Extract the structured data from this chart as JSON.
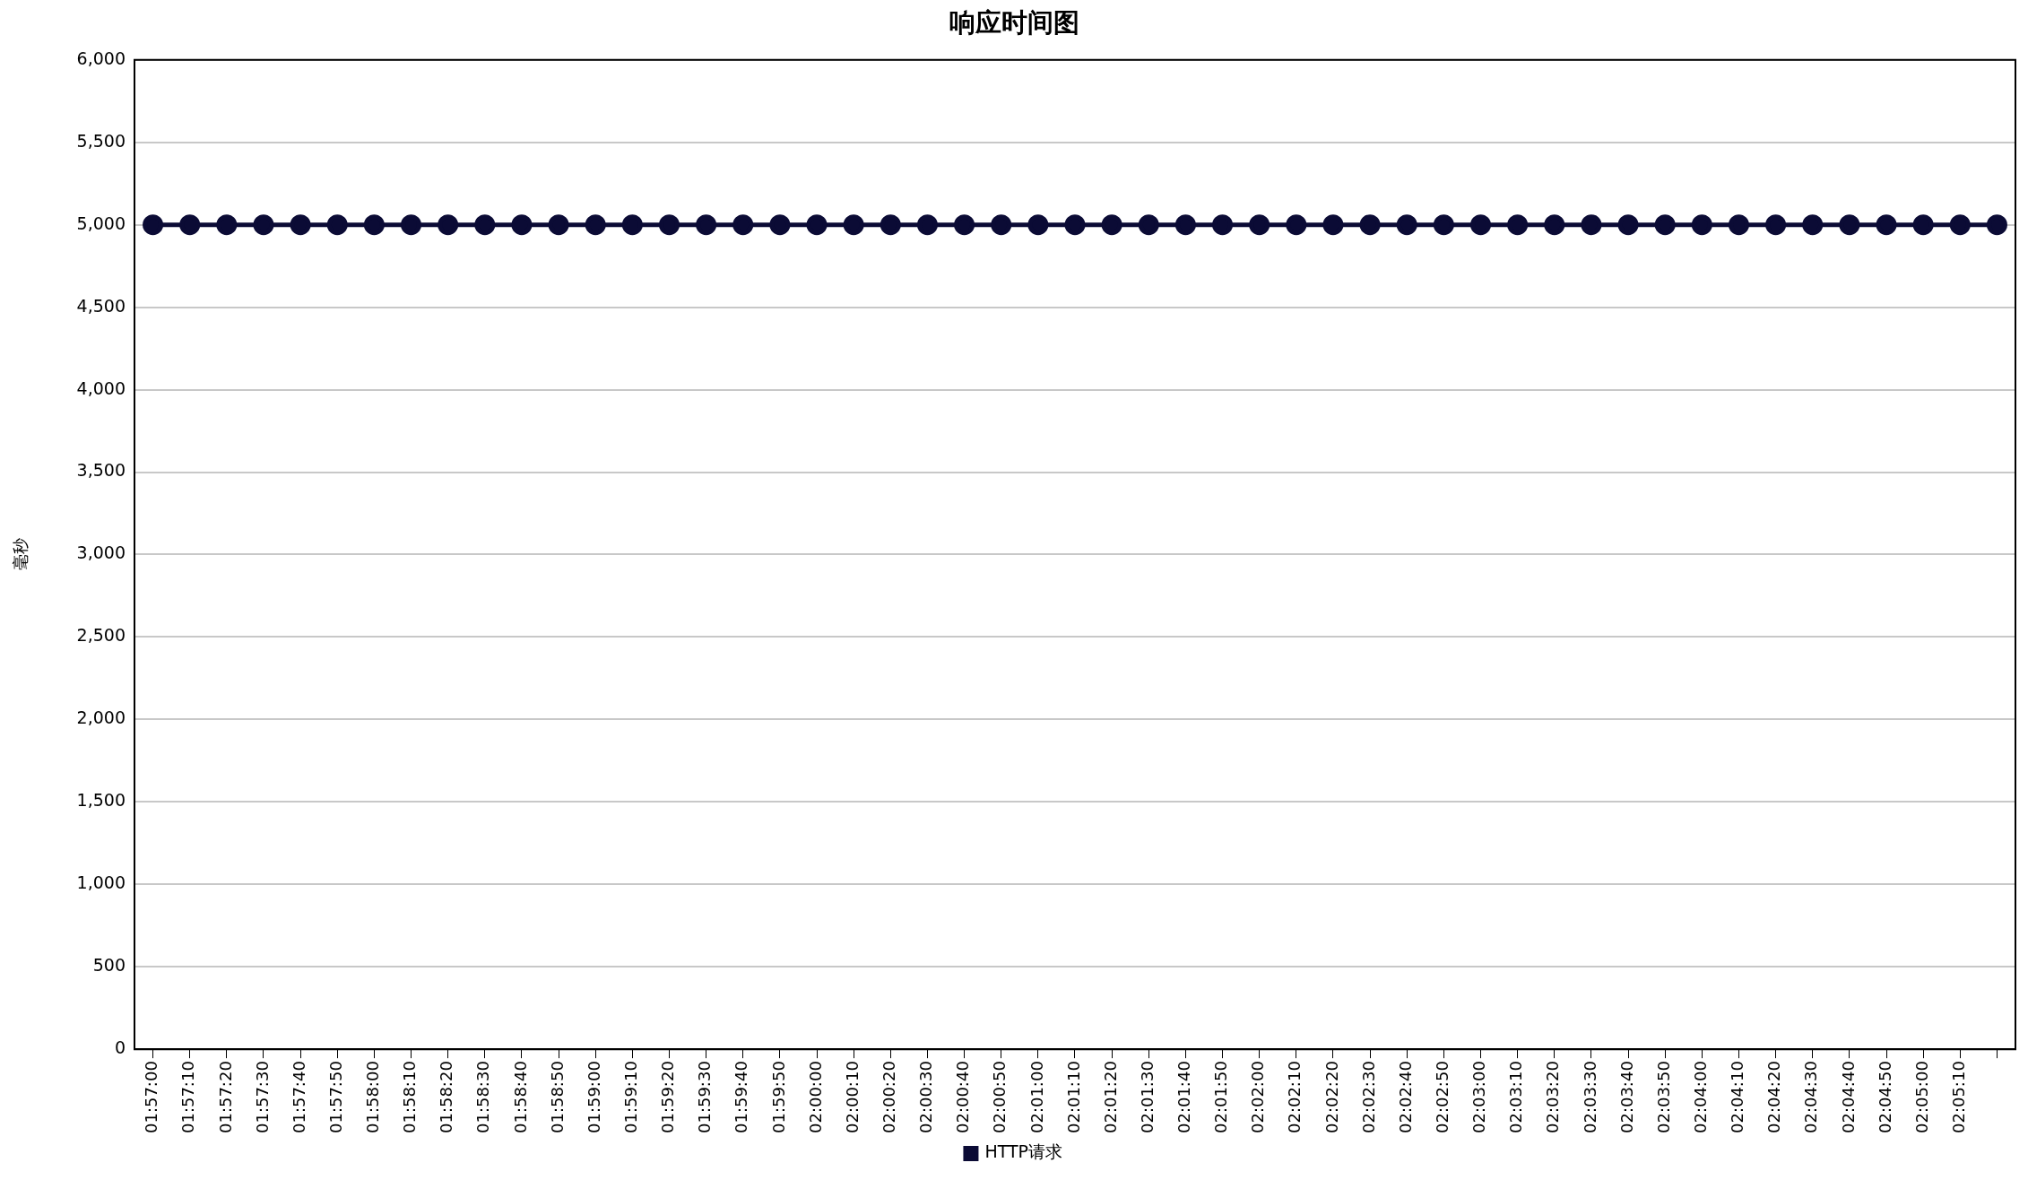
{
  "chart_data": {
    "type": "line",
    "title": "响应时间图",
    "ylabel": "毫秒",
    "categories": [
      "01:57:00",
      "01:57:10",
      "01:57:20",
      "01:57:30",
      "01:57:40",
      "01:57:50",
      "01:58:00",
      "01:58:10",
      "01:58:20",
      "01:58:30",
      "01:58:40",
      "01:58:50",
      "01:59:00",
      "01:59:10",
      "01:59:20",
      "01:59:30",
      "01:59:40",
      "01:59:50",
      "02:00:00",
      "02:00:10",
      "02:00:20",
      "02:00:30",
      "02:00:40",
      "02:00:50",
      "02:01:00",
      "02:01:10",
      "02:01:20",
      "02:01:30",
      "02:01:40",
      "02:01:50",
      "02:02:00",
      "02:02:10",
      "02:02:20",
      "02:02:30",
      "02:02:40",
      "02:02:50",
      "02:03:00",
      "02:03:10",
      "02:03:20",
      "02:03:30",
      "02:03:40",
      "02:03:50",
      "02:04:00",
      "02:04:10",
      "02:04:20",
      "02:04:30",
      "02:04:40",
      "02:04:50",
      "02:05:00",
      "02:05:10",
      null
    ],
    "series": [
      {
        "name": "HTTP请求",
        "color": "#0b0b35",
        "values": [
          5000,
          5000,
          5000,
          5000,
          5000,
          5000,
          5000,
          5000,
          5000,
          5000,
          5000,
          5000,
          5000,
          5000,
          5000,
          5000,
          5000,
          5000,
          5000,
          5000,
          5000,
          5000,
          5000,
          5000,
          5000,
          5000,
          5000,
          5000,
          5000,
          5000,
          5000,
          5000,
          5000,
          5000,
          5000,
          5000,
          5000,
          5000,
          5000,
          5000,
          5000,
          5000,
          5000,
          5000,
          5000,
          5000,
          5000,
          5000,
          5000,
          5000,
          5000
        ]
      }
    ],
    "ylim": [
      0,
      6000
    ],
    "yticks": [
      0,
      500,
      {
        "value": 1000,
        "label": "1,000"
      },
      {
        "value": 1500,
        "label": "1,500"
      },
      {
        "value": 2000,
        "label": "2,000"
      },
      {
        "value": 2500,
        "label": "2,500"
      },
      {
        "value": 3000,
        "label": "3,000"
      },
      {
        "value": 3500,
        "label": "3,500"
      },
      {
        "value": 4000,
        "label": "4,000"
      },
      {
        "value": 4500,
        "label": "4,500"
      },
      {
        "value": 5000,
        "label": "5,000"
      },
      {
        "value": 5500,
        "label": "5,500"
      },
      {
        "value": 6000,
        "label": "6,000"
      }
    ],
    "grid": "y",
    "legend": "bottom",
    "marker": "circle",
    "line_style": "solid"
  }
}
